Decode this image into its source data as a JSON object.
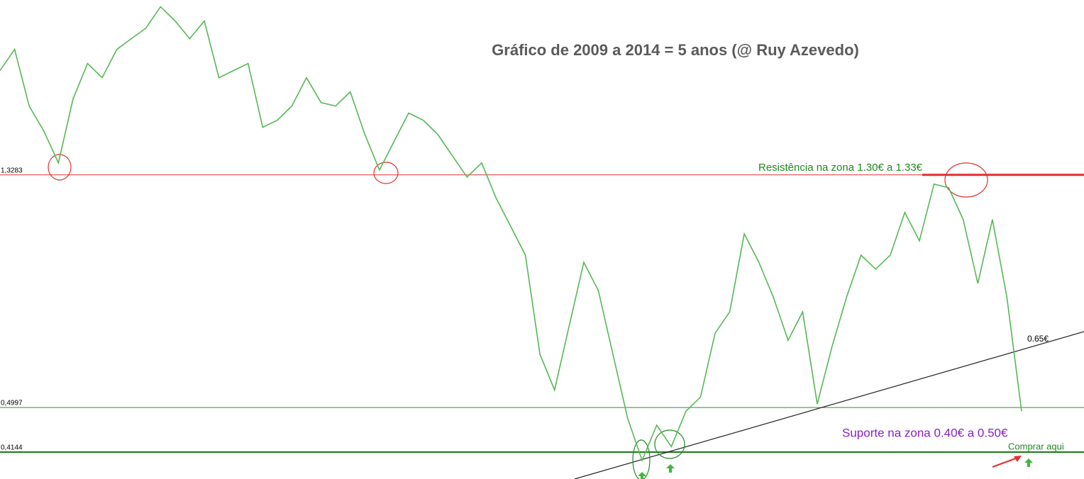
{
  "chart_data": {
    "type": "line",
    "title": "Gráfico de 2009 a 2014 = 5 anos (@ Ruy Azevedo)",
    "log_scale": true,
    "ylim": [
      0.37,
      2.77
    ],
    "series": [
      {
        "color": "#55b855",
        "values": [
          2.059,
          2.251,
          1.774,
          1.598,
          1.397,
          1.827,
          2.121,
          1.998,
          2.251,
          2.354,
          2.462,
          2.692,
          2.536,
          2.354,
          2.536,
          1.998,
          2.059,
          2.121,
          1.622,
          1.671,
          1.774,
          1.998,
          1.8,
          1.774,
          1.883,
          1.574,
          1.356,
          1.528,
          1.722,
          1.671,
          1.574,
          1.439,
          1.316,
          1.397,
          1.204,
          1.069,
          0.948,
          0.625,
          0.538,
          0.704,
          0.92,
          0.817,
          0.625,
          0.478,
          0.4,
          0.464,
          0.424,
          0.492,
          0.522,
          0.683,
          0.747,
          1.037,
          0.92,
          0.793,
          0.663,
          0.747,
          0.507,
          0.644,
          0.793,
          0.948,
          0.894,
          0.948,
          1.134,
          1.007,
          1.278,
          1.259,
          1.101,
          0.842,
          1.101,
          0.793,
          0.492
        ]
      }
    ],
    "levels": [
      {
        "value": 1.3283,
        "label": "1,3283",
        "color": "#e03030"
      },
      {
        "value": 0.4997,
        "label": "0,4997",
        "color": "#2e8b2e"
      },
      {
        "value": 0.4144,
        "label": "0,4144",
        "color": "#1a7a1a"
      }
    ],
    "annotations": {
      "resistance": "Resistência na zona 1.30€ a 1.33€",
      "trendline": "0.65€",
      "support": "Suporte na zona 0.40€ a 0.50€",
      "buy": "Comprar aqui"
    }
  }
}
